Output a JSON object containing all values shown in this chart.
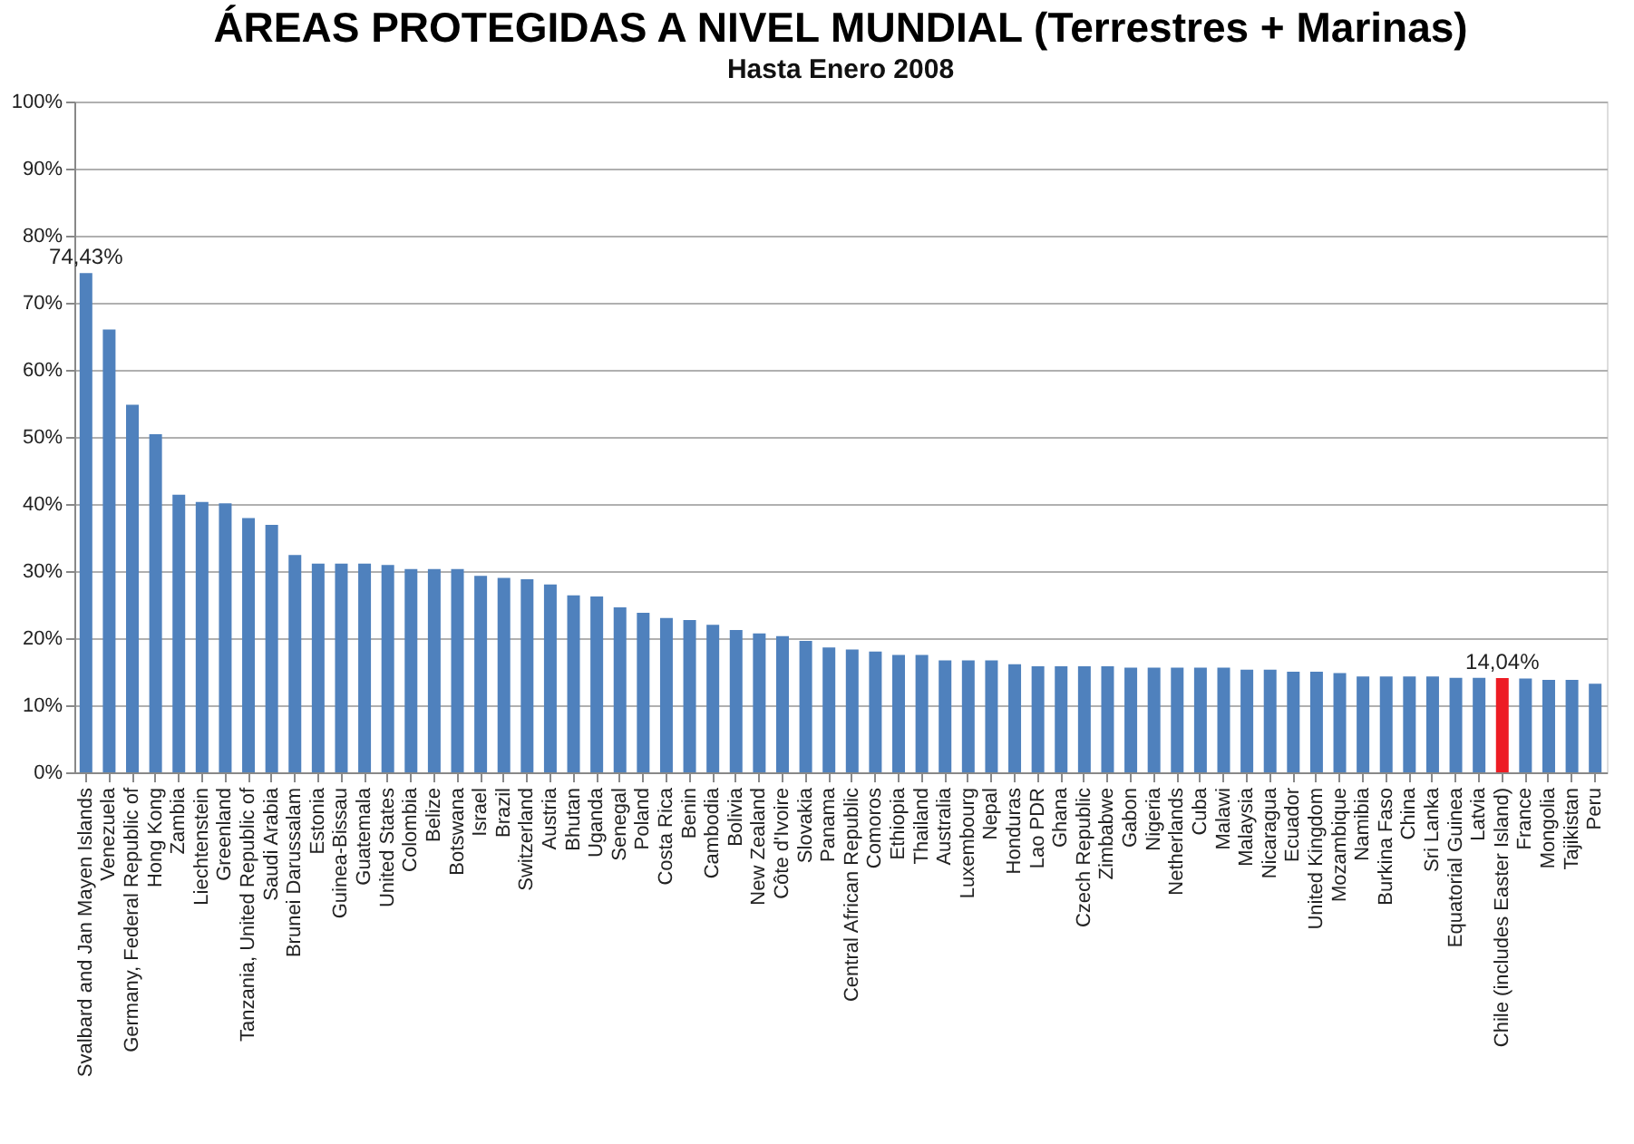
{
  "chart_data": {
    "type": "bar",
    "title": "ÁREAS PROTEGIDAS A NIVEL MUNDIAL (Terrestres + Marinas)",
    "subtitle": "Hasta Enero 2008",
    "categories": [
      "Svalbard and Jan Mayen Islands",
      "Venezuela",
      "Germany, Federal Republic of",
      "Hong Kong",
      "Zambia",
      "Liechtenstein",
      "Greenland",
      "Tanzania, United Republic of",
      "Saudi Arabia",
      "Brunei Darussalam",
      "Estonia",
      "Guinea-Bissau",
      "Guatemala",
      "United States",
      "Colombia",
      "Belize",
      "Botswana",
      "Israel",
      "Brazil",
      "Switzerland",
      "Austria",
      "Bhutan",
      "Uganda",
      "Senegal",
      "Poland",
      "Costa Rica",
      "Benin",
      "Cambodia",
      "Bolivia",
      "New Zealand",
      "Côte d'Ivoire",
      "Slovakia",
      "Panama",
      "Central African Republic",
      "Comoros",
      "Ethiopia",
      "Thailand",
      "Australia",
      "Luxembourg",
      "Nepal",
      "Honduras",
      "Lao PDR",
      "Ghana",
      "Czech Republic",
      "Zimbabwe",
      "Gabon",
      "Nigeria",
      "Netherlands",
      "Cuba",
      "Malawi",
      "Malaysia",
      "Nicaragua",
      "Ecuador",
      "United Kingdom",
      "Mozambique",
      "Namibia",
      "Burkina Faso",
      "China",
      "Sri Lanka",
      "Equatorial Guinea",
      "Latvia",
      "Chile (includes Easter Island)",
      "France",
      "Mongolia",
      "Tajikistan",
      "Peru"
    ],
    "values": [
      74.43,
      66.0,
      54.8,
      50.4,
      41.4,
      40.3,
      40.1,
      37.9,
      36.9,
      32.4,
      31.1,
      31.1,
      31.1,
      30.9,
      30.3,
      30.3,
      30.3,
      29.3,
      29.0,
      28.8,
      28.0,
      26.4,
      26.2,
      24.6,
      23.8,
      23.0,
      22.7,
      22.0,
      21.2,
      20.7,
      20.3,
      19.6,
      18.6,
      18.3,
      18.0,
      17.5,
      17.5,
      16.7,
      16.7,
      16.7,
      16.1,
      15.8,
      15.8,
      15.8,
      15.8,
      15.6,
      15.6,
      15.6,
      15.6,
      15.6,
      15.3,
      15.3,
      15.0,
      15.0,
      14.8,
      14.3,
      14.3,
      14.3,
      14.3,
      14.1,
      14.1,
      14.04,
      14.0,
      13.8,
      13.8,
      13.2
    ],
    "colors": [
      "#4f81bd",
      "#4f81bd",
      "#4f81bd",
      "#4f81bd",
      "#4f81bd",
      "#4f81bd",
      "#4f81bd",
      "#4f81bd",
      "#4f81bd",
      "#4f81bd",
      "#4f81bd",
      "#4f81bd",
      "#4f81bd",
      "#4f81bd",
      "#4f81bd",
      "#4f81bd",
      "#4f81bd",
      "#4f81bd",
      "#4f81bd",
      "#4f81bd",
      "#4f81bd",
      "#4f81bd",
      "#4f81bd",
      "#4f81bd",
      "#4f81bd",
      "#4f81bd",
      "#4f81bd",
      "#4f81bd",
      "#4f81bd",
      "#4f81bd",
      "#4f81bd",
      "#4f81bd",
      "#4f81bd",
      "#4f81bd",
      "#4f81bd",
      "#4f81bd",
      "#4f81bd",
      "#4f81bd",
      "#4f81bd",
      "#4f81bd",
      "#4f81bd",
      "#4f81bd",
      "#4f81bd",
      "#4f81bd",
      "#4f81bd",
      "#4f81bd",
      "#4f81bd",
      "#4f81bd",
      "#4f81bd",
      "#4f81bd",
      "#4f81bd",
      "#4f81bd",
      "#4f81bd",
      "#4f81bd",
      "#4f81bd",
      "#4f81bd",
      "#4f81bd",
      "#4f81bd",
      "#4f81bd",
      "#4f81bd",
      "#4f81bd",
      "#ed1c24",
      "#4f81bd",
      "#4f81bd",
      "#4f81bd",
      "#4f81bd"
    ],
    "value_labels": [
      "74,43%",
      null,
      null,
      null,
      null,
      null,
      null,
      null,
      null,
      null,
      null,
      null,
      null,
      null,
      null,
      null,
      null,
      null,
      null,
      null,
      null,
      null,
      null,
      null,
      null,
      null,
      null,
      null,
      null,
      null,
      null,
      null,
      null,
      null,
      null,
      null,
      null,
      null,
      null,
      null,
      null,
      null,
      null,
      null,
      null,
      null,
      null,
      null,
      null,
      null,
      null,
      null,
      null,
      null,
      null,
      null,
      null,
      null,
      null,
      null,
      null,
      "14,04%",
      null,
      null,
      null,
      null
    ],
    "ylim": [
      0,
      100
    ],
    "yticks": [
      {
        "value": 0,
        "label": "0%"
      },
      {
        "value": 10,
        "label": "10%"
      },
      {
        "value": 20,
        "label": "20%"
      },
      {
        "value": 30,
        "label": "30%"
      },
      {
        "value": 40,
        "label": "40%"
      },
      {
        "value": 50,
        "label": "50%"
      },
      {
        "value": 60,
        "label": "60%"
      },
      {
        "value": 70,
        "label": "70%"
      },
      {
        "value": 80,
        "label": "80%"
      },
      {
        "value": 90,
        "label": "90%"
      },
      {
        "value": 100,
        "label": "100%"
      }
    ],
    "grid": "y"
  }
}
